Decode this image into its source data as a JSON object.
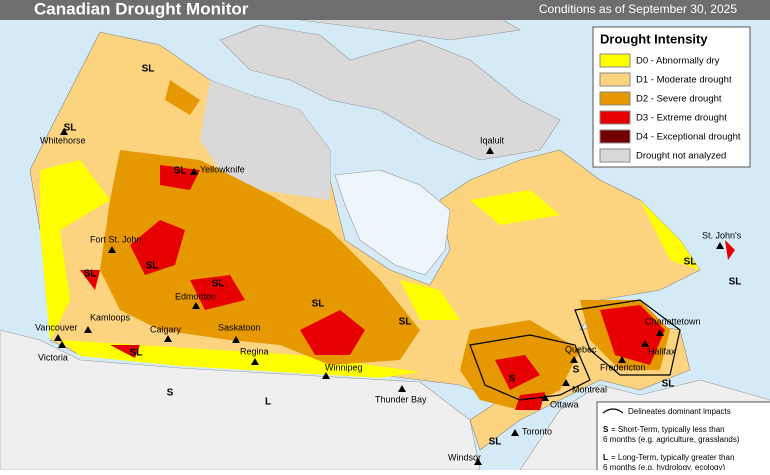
{
  "header": {
    "title": "Canadian Drought Monitor",
    "subtitle": "Conditions as of September 30, 2025"
  },
  "legend": {
    "title": "Drought Intensity",
    "items": [
      {
        "label": "D0 - Abnormally dry",
        "color": "#ffff00"
      },
      {
        "label": "D1 - Moderate drought",
        "color": "#fcd37f"
      },
      {
        "label": "D2 - Severe drought",
        "color": "#e69800"
      },
      {
        "label": "D3 - Extreme drought",
        "color": "#e60000"
      },
      {
        "label": "D4 - Exceptional drought",
        "color": "#730000"
      },
      {
        "label": "Drought not analyzed",
        "color": "#d9d9d9"
      }
    ]
  },
  "impacts_legend": {
    "title": "Delineates dominant impacts",
    "items": [
      {
        "code": "S",
        "lines": [
          "= Short-Term, typically less than",
          "6 months (e.g. agriculture, grasslands)"
        ]
      },
      {
        "code": "L",
        "lines": [
          "= Long-Term, typically greater than",
          "6 months (e.g. hydrology, ecology)"
        ]
      }
    ]
  },
  "cities": [
    "Whitehorse",
    "Yellowknife",
    "Iqaluit",
    "Fort St. John",
    "Edmonton",
    "Kamloops",
    "Calgary",
    "Saskatoon",
    "Vancouver",
    "Victoria",
    "Regina",
    "Winnipeg",
    "Thunder Bay",
    "Quebec",
    "Montreal",
    "Ottawa",
    "Fredericton",
    "Charlottetown",
    "Halifax",
    "St. John's",
    "Toronto",
    "Windsor"
  ],
  "impact_labels": [
    "SL",
    "SL",
    "SL",
    "SL",
    "SL",
    "SL",
    "SL",
    "SL",
    "SL",
    "SL",
    "SL",
    "SL",
    "SL",
    "S",
    "S",
    "S",
    "L"
  ]
}
